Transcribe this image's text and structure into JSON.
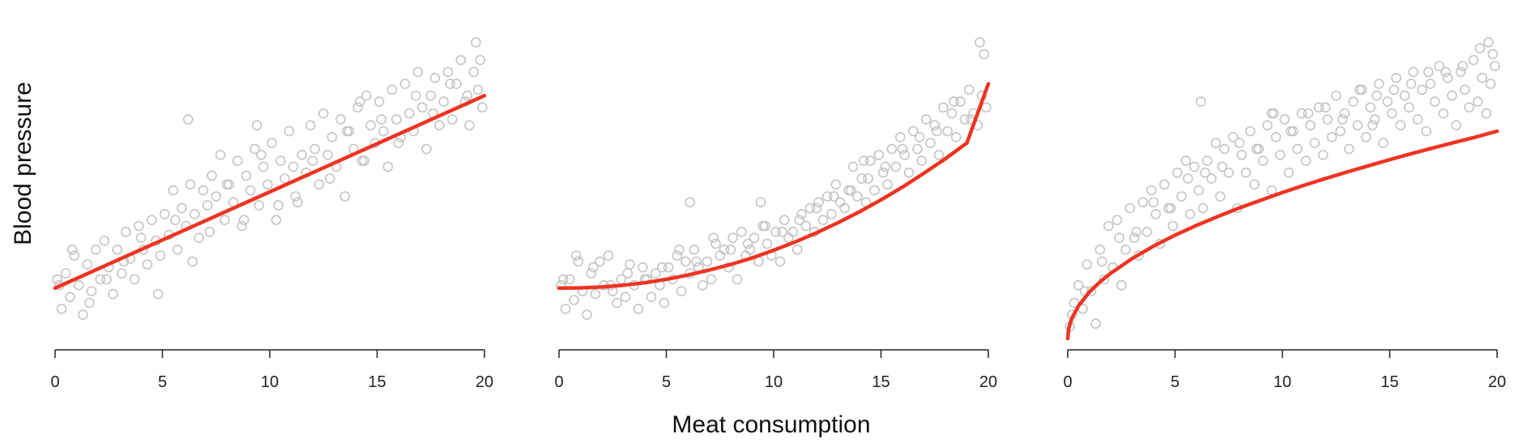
{
  "xlabel": "Meat consumption",
  "ylabel": "Blood pressure",
  "colors": {
    "points": "#c4c4c4",
    "fit": "#ee3322",
    "axis": "#222222"
  },
  "chart_data": [
    {
      "type": "scatter",
      "panel": "left",
      "fit_shape": "linear",
      "title": "",
      "xlim": [
        0,
        20
      ],
      "xticks": [
        "0",
        "5",
        "10",
        "15",
        "20"
      ],
      "ylim": [
        0,
        1.05
      ],
      "grid": false,
      "fit_line": {
        "x": [
          0,
          20
        ],
        "y": [
          0.17,
          0.82
        ]
      },
      "x": [
        0.1,
        0.3,
        0.5,
        0.7,
        0.9,
        1.1,
        1.3,
        1.5,
        1.7,
        1.9,
        2.1,
        2.3,
        2.5,
        2.7,
        2.9,
        3.1,
        3.3,
        3.5,
        3.7,
        3.9,
        4.1,
        4.3,
        4.5,
        4.7,
        4.9,
        5.1,
        5.3,
        5.5,
        5.7,
        5.9,
        6.1,
        6.3,
        6.5,
        6.7,
        6.9,
        7.1,
        7.3,
        7.5,
        7.7,
        7.9,
        8.1,
        8.3,
        8.5,
        8.7,
        8.9,
        9.1,
        9.3,
        9.5,
        9.7,
        9.9,
        10.1,
        10.3,
        10.5,
        10.7,
        10.9,
        11.1,
        11.3,
        11.5,
        11.7,
        11.9,
        12.1,
        12.3,
        12.5,
        12.7,
        12.9,
        13.1,
        13.3,
        13.5,
        13.7,
        13.9,
        14.1,
        14.3,
        14.5,
        14.7,
        14.9,
        15.1,
        15.3,
        15.5,
        15.7,
        15.9,
        16.1,
        16.3,
        16.5,
        16.7,
        16.9,
        17.1,
        17.3,
        17.5,
        17.7,
        17.9,
        18.1,
        18.3,
        18.5,
        18.7,
        18.9,
        19.1,
        19.3,
        19.5,
        19.7,
        19.9,
        0.2,
        0.8,
        1.6,
        2.4,
        3.2,
        4.0,
        4.8,
        5.6,
        6.4,
        7.2,
        8.0,
        8.8,
        9.6,
        10.4,
        11.2,
        12.0,
        12.8,
        13.6,
        14.4,
        15.2,
        16.0,
        16.8,
        17.6,
        18.4,
        19.2,
        19.6,
        19.8,
        6.2,
        9.4,
        14.2
      ],
      "y": [
        0.2,
        0.1,
        0.22,
        0.14,
        0.28,
        0.18,
        0.08,
        0.25,
        0.16,
        0.3,
        0.2,
        0.33,
        0.24,
        0.15,
        0.3,
        0.22,
        0.36,
        0.27,
        0.2,
        0.38,
        0.3,
        0.25,
        0.4,
        0.33,
        0.28,
        0.42,
        0.35,
        0.5,
        0.3,
        0.44,
        0.38,
        0.52,
        0.42,
        0.34,
        0.5,
        0.45,
        0.55,
        0.48,
        0.62,
        0.4,
        0.52,
        0.46,
        0.6,
        0.38,
        0.55,
        0.5,
        0.64,
        0.45,
        0.58,
        0.52,
        0.66,
        0.4,
        0.6,
        0.54,
        0.7,
        0.58,
        0.46,
        0.62,
        0.56,
        0.72,
        0.64,
        0.52,
        0.76,
        0.62,
        0.68,
        0.58,
        0.74,
        0.48,
        0.7,
        0.64,
        0.78,
        0.6,
        0.82,
        0.72,
        0.66,
        0.8,
        0.7,
        0.58,
        0.84,
        0.74,
        0.68,
        0.86,
        0.76,
        0.7,
        0.9,
        0.78,
        0.64,
        0.82,
        0.88,
        0.72,
        0.8,
        0.9,
        0.74,
        0.86,
        0.94,
        0.8,
        0.72,
        0.9,
        0.84,
        0.78,
        0.18,
        0.3,
        0.12,
        0.2,
        0.26,
        0.34,
        0.15,
        0.4,
        0.26,
        0.36,
        0.52,
        0.4,
        0.62,
        0.45,
        0.48,
        0.6,
        0.54,
        0.7,
        0.6,
        0.74,
        0.66,
        0.82,
        0.76,
        0.86,
        0.82,
        1.0,
        0.94,
        0.74,
        0.72,
        0.8
      ]
    },
    {
      "type": "scatter",
      "panel": "middle",
      "fit_shape": "quadratic",
      "title": "",
      "xlim": [
        0,
        20
      ],
      "xticks": [
        "0",
        "5",
        "10",
        "15",
        "20"
      ],
      "ylim": [
        0,
        1.05
      ],
      "grid": false,
      "fit_line": {
        "x": [
          0,
          1,
          2,
          3,
          4,
          5,
          6,
          7,
          8,
          9,
          10,
          11,
          12,
          13,
          14,
          15,
          16,
          17,
          18,
          19,
          20
        ],
        "y": [
          0.17,
          0.171,
          0.174,
          0.18,
          0.188,
          0.2,
          0.214,
          0.231,
          0.25,
          0.272,
          0.298,
          0.326,
          0.357,
          0.391,
          0.428,
          0.468,
          0.511,
          0.558,
          0.607,
          0.66,
          0.86
        ]
      },
      "x": [
        0.1,
        0.3,
        0.5,
        0.7,
        0.9,
        1.1,
        1.3,
        1.5,
        1.7,
        1.9,
        2.1,
        2.3,
        2.5,
        2.7,
        2.9,
        3.1,
        3.3,
        3.5,
        3.7,
        3.9,
        4.1,
        4.3,
        4.5,
        4.7,
        4.9,
        5.1,
        5.3,
        5.5,
        5.7,
        5.9,
        6.1,
        6.3,
        6.5,
        6.7,
        6.9,
        7.1,
        7.3,
        7.5,
        7.7,
        7.9,
        8.1,
        8.3,
        8.5,
        8.7,
        8.9,
        9.1,
        9.3,
        9.5,
        9.7,
        9.9,
        10.1,
        10.3,
        10.5,
        10.7,
        10.9,
        11.1,
        11.3,
        11.5,
        11.7,
        11.9,
        12.1,
        12.3,
        12.5,
        12.7,
        12.9,
        13.1,
        13.3,
        13.5,
        13.7,
        13.9,
        14.1,
        14.3,
        14.5,
        14.7,
        14.9,
        15.1,
        15.3,
        15.5,
        15.7,
        15.9,
        16.1,
        16.3,
        16.5,
        16.7,
        16.9,
        17.1,
        17.3,
        17.5,
        17.7,
        17.9,
        18.1,
        18.3,
        18.5,
        18.7,
        18.9,
        19.1,
        19.3,
        19.5,
        19.7,
        19.9,
        0.2,
        0.8,
        1.6,
        2.4,
        3.2,
        4.0,
        4.8,
        5.6,
        6.4,
        7.2,
        8.0,
        8.8,
        9.6,
        10.4,
        11.2,
        12.0,
        12.8,
        13.6,
        14.4,
        15.2,
        16.0,
        16.8,
        17.6,
        18.4,
        19.2,
        19.6,
        19.8,
        6.1,
        9.4,
        14.2
      ],
      "y": [
        0.18,
        0.1,
        0.2,
        0.13,
        0.26,
        0.16,
        0.08,
        0.22,
        0.15,
        0.26,
        0.18,
        0.28,
        0.16,
        0.12,
        0.2,
        0.14,
        0.25,
        0.18,
        0.1,
        0.24,
        0.2,
        0.14,
        0.22,
        0.18,
        0.12,
        0.24,
        0.2,
        0.28,
        0.16,
        0.26,
        0.22,
        0.3,
        0.24,
        0.18,
        0.26,
        0.2,
        0.32,
        0.28,
        0.3,
        0.24,
        0.34,
        0.2,
        0.36,
        0.28,
        0.3,
        0.34,
        0.26,
        0.38,
        0.32,
        0.28,
        0.36,
        0.26,
        0.4,
        0.34,
        0.36,
        0.3,
        0.42,
        0.38,
        0.44,
        0.36,
        0.46,
        0.4,
        0.48,
        0.42,
        0.52,
        0.46,
        0.44,
        0.5,
        0.58,
        0.48,
        0.54,
        0.46,
        0.6,
        0.5,
        0.62,
        0.56,
        0.52,
        0.64,
        0.58,
        0.68,
        0.62,
        0.56,
        0.7,
        0.64,
        0.6,
        0.74,
        0.66,
        0.72,
        0.62,
        0.78,
        0.7,
        0.76,
        0.68,
        0.8,
        0.74,
        0.84,
        0.76,
        0.72,
        0.82,
        0.78,
        0.2,
        0.28,
        0.24,
        0.18,
        0.22,
        0.2,
        0.24,
        0.3,
        0.26,
        0.34,
        0.3,
        0.32,
        0.38,
        0.36,
        0.4,
        0.44,
        0.48,
        0.5,
        0.54,
        0.58,
        0.64,
        0.68,
        0.7,
        0.8,
        0.74,
        1.0,
        0.96,
        0.46,
        0.46,
        0.6
      ]
    },
    {
      "type": "scatter",
      "panel": "right",
      "fit_shape": "square-root",
      "title": "",
      "xlim": [
        0,
        20
      ],
      "xticks": [
        "0",
        "5",
        "10",
        "15",
        "20"
      ],
      "ylim": [
        0,
        1.05
      ],
      "grid": false,
      "fit_line": {
        "x": [
          0,
          0.05,
          0.2,
          0.5,
          1,
          1.5,
          2,
          3,
          4,
          5,
          6,
          7,
          8,
          9,
          10,
          11,
          12,
          13,
          14,
          15,
          16,
          17,
          18,
          19,
          20
        ],
        "y": [
          0.0,
          0.035,
          0.07,
          0.11,
          0.156,
          0.191,
          0.22,
          0.27,
          0.312,
          0.349,
          0.382,
          0.412,
          0.441,
          0.467,
          0.493,
          0.517,
          0.54,
          0.562,
          0.583,
          0.604,
          0.624,
          0.643,
          0.662,
          0.68,
          0.7
        ]
      },
      "x": [
        0.1,
        0.3,
        0.5,
        0.7,
        0.9,
        1.1,
        1.3,
        1.5,
        1.7,
        1.9,
        2.1,
        2.3,
        2.5,
        2.7,
        2.9,
        3.1,
        3.3,
        3.5,
        3.7,
        3.9,
        4.1,
        4.3,
        4.5,
        4.7,
        4.9,
        5.1,
        5.3,
        5.5,
        5.7,
        5.9,
        6.1,
        6.3,
        6.5,
        6.7,
        6.9,
        7.1,
        7.3,
        7.5,
        7.7,
        7.9,
        8.1,
        8.3,
        8.5,
        8.7,
        8.9,
        9.1,
        9.3,
        9.5,
        9.7,
        9.9,
        10.1,
        10.3,
        10.5,
        10.7,
        10.9,
        11.1,
        11.3,
        11.5,
        11.7,
        11.9,
        12.1,
        12.3,
        12.5,
        12.7,
        12.9,
        13.1,
        13.3,
        13.5,
        13.7,
        13.9,
        14.1,
        14.3,
        14.5,
        14.7,
        14.9,
        15.1,
        15.3,
        15.5,
        15.7,
        15.9,
        16.1,
        16.3,
        16.5,
        16.7,
        16.9,
        17.1,
        17.3,
        17.5,
        17.7,
        17.9,
        18.1,
        18.3,
        18.5,
        18.7,
        18.9,
        19.1,
        19.3,
        19.5,
        19.7,
        19.9,
        0.2,
        0.8,
        1.6,
        2.4,
        3.2,
        4.0,
        4.8,
        5.6,
        6.4,
        7.2,
        8.0,
        8.8,
        9.6,
        10.4,
        11.2,
        12.0,
        12.8,
        13.6,
        14.4,
        15.2,
        16.0,
        16.8,
        17.6,
        18.4,
        19.2,
        19.6,
        19.8,
        6.2,
        9.5,
        14.2
      ],
      "y": [
        0.04,
        0.12,
        0.18,
        0.1,
        0.25,
        0.16,
        0.05,
        0.3,
        0.2,
        0.38,
        0.24,
        0.4,
        0.18,
        0.3,
        0.44,
        0.34,
        0.28,
        0.46,
        0.36,
        0.5,
        0.42,
        0.32,
        0.52,
        0.44,
        0.38,
        0.56,
        0.48,
        0.6,
        0.42,
        0.58,
        0.5,
        0.44,
        0.6,
        0.54,
        0.66,
        0.48,
        0.64,
        0.56,
        0.68,
        0.44,
        0.62,
        0.56,
        0.7,
        0.52,
        0.64,
        0.6,
        0.72,
        0.5,
        0.68,
        0.62,
        0.74,
        0.56,
        0.7,
        0.64,
        0.76,
        0.6,
        0.72,
        0.66,
        0.78,
        0.62,
        0.74,
        0.68,
        0.82,
        0.7,
        0.76,
        0.64,
        0.8,
        0.72,
        0.84,
        0.68,
        0.78,
        0.74,
        0.86,
        0.66,
        0.8,
        0.76,
        0.88,
        0.72,
        0.82,
        0.78,
        0.9,
        0.74,
        0.84,
        0.7,
        0.86,
        0.8,
        0.92,
        0.76,
        0.88,
        0.82,
        0.72,
        0.9,
        0.84,
        0.78,
        0.94,
        0.8,
        0.88,
        0.76,
        0.86,
        0.92,
        0.08,
        0.16,
        0.26,
        0.34,
        0.36,
        0.46,
        0.44,
        0.54,
        0.56,
        0.58,
        0.66,
        0.64,
        0.76,
        0.7,
        0.76,
        0.78,
        0.74,
        0.84,
        0.82,
        0.84,
        0.86,
        0.9,
        0.9,
        0.92,
        0.98,
        1.0,
        0.96,
        0.8,
        0.76,
        0.72
      ]
    }
  ]
}
